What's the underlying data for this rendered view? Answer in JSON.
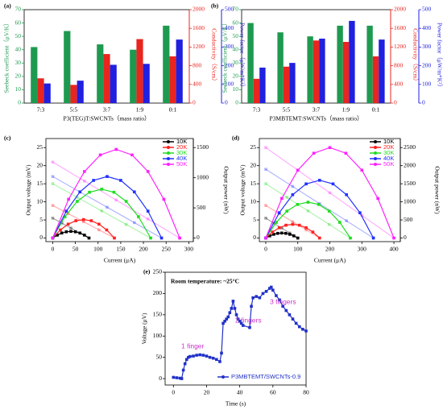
{
  "chart_data": [
    {
      "type": "bar",
      "panel_label": "(a)",
      "xlabel": "P3(TEG)T:SWCNTs（mass ratio）",
      "ylabel": "Seebeck coefficient（μV/K）",
      "y2label": "Conductivity（S/cm）",
      "y3label": "Power factor（μW/m*K²）",
      "categories": [
        "7:3",
        "5:5",
        "3:7",
        "1:9",
        "0:1"
      ],
      "ylim": [
        0,
        70
      ],
      "yticks": [
        0,
        10,
        20,
        30,
        40,
        50,
        60,
        70
      ],
      "y2lim": [
        0,
        2000
      ],
      "y2ticks": [
        0,
        400,
        800,
        1200,
        1600,
        2000
      ],
      "y3lim": [
        0,
        500
      ],
      "y3ticks": [
        0,
        100,
        200,
        300,
        400,
        500
      ],
      "series": [
        {
          "color": "#1e9a50",
          "values": [
            42,
            54,
            44,
            40,
            58
          ]
        },
        {
          "color": "#e8251f",
          "axis": "y2",
          "values": [
            530,
            390,
            1050,
            1370,
            1000
          ]
        },
        {
          "color": "#2020e0",
          "axis": "y3",
          "values": [
            105,
            120,
            205,
            210,
            340
          ]
        }
      ]
    },
    {
      "type": "bar",
      "panel_label": "(b)",
      "xlabel": "P3MBTEMT:SWCNTs（mass ratio）",
      "ylabel": "Seebeck coefficient（μV/K）",
      "y2label": "Conductivity（S/cm）",
      "y3label": "Power factor（μW/m*K²）",
      "categories": [
        "7:3",
        "5:5",
        "3:7",
        "1:9",
        "0:1"
      ],
      "ylim": [
        0,
        70
      ],
      "yticks": [
        0,
        10,
        20,
        30,
        40,
        50,
        60,
        70
      ],
      "y2lim": [
        0,
        2000
      ],
      "y2ticks": [
        0,
        400,
        800,
        1200,
        1600,
        2000
      ],
      "y3lim": [
        0,
        500
      ],
      "y3ticks": [
        0,
        100,
        200,
        300,
        400,
        500
      ],
      "series": [
        {
          "color": "#1e9a50",
          "values": [
            60,
            53,
            50,
            58,
            58
          ]
        },
        {
          "color": "#e8251f",
          "axis": "y2",
          "values": [
            520,
            780,
            1340,
            1310,
            1000
          ]
        },
        {
          "color": "#2020e0",
          "axis": "y3",
          "values": [
            190,
            215,
            345,
            440,
            340
          ]
        }
      ]
    },
    {
      "type": "line",
      "panel_label": "(c)",
      "xlabel": "Current (μA)",
      "ylabel": "Output voltage (mV)",
      "y2label": "Output power (nW)",
      "xlim": [
        -15,
        310
      ],
      "xticks": [
        0,
        50,
        100,
        150,
        200,
        250,
        300
      ],
      "ylim": [
        -1,
        27.5
      ],
      "yticks": [
        0,
        5,
        10,
        15,
        20,
        25
      ],
      "y2lim": [
        -60,
        1650
      ],
      "y2ticks": [
        0,
        500,
        1000,
        1500
      ],
      "legend": "upper right",
      "series": [
        {
          "name": "10K",
          "color": "#000000",
          "opacity": 0.35,
          "x": [
            0,
            20,
            40,
            60,
            80
          ],
          "values": [
            5.5,
            4.13,
            2.75,
            1.38,
            0
          ]
        },
        {
          "name": "20K",
          "color": "#ff2020",
          "opacity": 0.35,
          "x": [
            0,
            34,
            68,
            102,
            136
          ],
          "values": [
            9,
            6.75,
            4.5,
            2.25,
            0
          ]
        },
        {
          "name": "30K",
          "color": "#20dd20",
          "opacity": 0.35,
          "x": [
            0,
            54,
            108,
            162,
            216
          ],
          "values": [
            15,
            11.25,
            7.5,
            3.75,
            0
          ]
        },
        {
          "name": "40K",
          "color": "#2030ff",
          "opacity": 0.35,
          "x": [
            0,
            60,
            120,
            180,
            240
          ],
          "values": [
            17,
            12.75,
            8.5,
            4.25,
            0
          ]
        },
        {
          "name": "50K",
          "color": "#ff20ff",
          "opacity": 0.35,
          "x": [
            0,
            70,
            140,
            210,
            280
          ],
          "values": [
            21,
            15.75,
            10.5,
            5.25,
            0
          ]
        },
        {
          "color": "#000000",
          "axis": "y2",
          "x": [
            0,
            10,
            20,
            30,
            40,
            50,
            60,
            70,
            80
          ],
          "values": [
            0,
            48,
            83,
            103,
            110,
            103,
            83,
            48,
            0
          ]
        },
        {
          "color": "#ff2020",
          "axis": "y2",
          "x": [
            0,
            17,
            34,
            51,
            68,
            85,
            102,
            119,
            136
          ],
          "values": [
            0,
            134,
            230,
            287,
            306,
            287,
            230,
            134,
            0
          ]
        },
        {
          "color": "#20dd20",
          "axis": "y2",
          "x": [
            0,
            27,
            54,
            81,
            108,
            135,
            162,
            189,
            216
          ],
          "values": [
            0,
            354,
            608,
            759,
            810,
            759,
            608,
            354,
            0
          ]
        },
        {
          "color": "#2030ff",
          "axis": "y2",
          "x": [
            0,
            30,
            60,
            90,
            120,
            150,
            180,
            210,
            240
          ],
          "values": [
            0,
            446,
            765,
            956,
            1020,
            956,
            765,
            446,
            0
          ]
        },
        {
          "color": "#ff20ff",
          "axis": "y2",
          "x": [
            0,
            35,
            70,
            105,
            140,
            175,
            210,
            245,
            280
          ],
          "values": [
            0,
            643,
            1103,
            1378,
            1470,
            1378,
            1103,
            643,
            0
          ]
        }
      ]
    },
    {
      "type": "line",
      "panel_label": "(d)",
      "xlabel": "Current (μA)",
      "ylabel": "Output voltage (mV)",
      "y2label": "Output power (nW)",
      "xlim": [
        -20,
        420
      ],
      "xticks": [
        0,
        100,
        200,
        300,
        400
      ],
      "ylim": [
        -1,
        27.5
      ],
      "yticks": [
        0,
        5,
        10,
        15,
        20,
        25
      ],
      "y2lim": [
        -100,
        2750
      ],
      "y2ticks": [
        0,
        500,
        1000,
        1500,
        2000,
        2500
      ],
      "legend": "upper right",
      "series": [
        {
          "name": "10K",
          "color": "#000000",
          "opacity": 0.35,
          "x": [
            0,
            25,
            50,
            75,
            100
          ],
          "values": [
            5.5,
            4.13,
            2.75,
            1.38,
            0
          ]
        },
        {
          "name": "20K",
          "color": "#ff2020",
          "opacity": 0.35,
          "x": [
            0,
            42,
            84,
            126,
            168
          ],
          "values": [
            9,
            6.75,
            4.5,
            2.25,
            0
          ]
        },
        {
          "name": "30K",
          "color": "#20dd20",
          "opacity": 0.35,
          "x": [
            0,
            66,
            132,
            198,
            264
          ],
          "values": [
            15,
            11.25,
            7.5,
            3.75,
            0
          ]
        },
        {
          "name": "40K",
          "color": "#2030ff",
          "opacity": 0.35,
          "x": [
            0,
            84,
            168,
            252,
            336
          ],
          "values": [
            19,
            14.25,
            9.5,
            4.75,
            0
          ]
        },
        {
          "name": "50K",
          "color": "#ff20ff",
          "opacity": 0.35,
          "x": [
            0,
            100,
            200,
            300,
            400
          ],
          "values": [
            25,
            18.75,
            12.5,
            6.25,
            0
          ]
        },
        {
          "color": "#000000",
          "axis": "y2",
          "x": [
            0,
            12.5,
            25,
            37.5,
            50,
            62.5,
            75,
            87.5,
            100
          ],
          "values": [
            0,
            60,
            103,
            129,
            138,
            129,
            103,
            60,
            0
          ]
        },
        {
          "color": "#ff2020",
          "axis": "y2",
          "x": [
            0,
            21,
            42,
            63,
            84,
            105,
            126,
            147,
            168
          ],
          "values": [
            0,
            165,
            284,
            354,
            378,
            354,
            284,
            165,
            0
          ]
        },
        {
          "color": "#20dd20",
          "axis": "y2",
          "x": [
            0,
            33,
            66,
            99,
            132,
            165,
            198,
            231,
            264
          ],
          "values": [
            0,
            433,
            743,
            928,
            990,
            928,
            743,
            433,
            0
          ]
        },
        {
          "color": "#2030ff",
          "axis": "y2",
          "x": [
            0,
            42,
            84,
            126,
            168,
            210,
            252,
            294,
            336
          ],
          "values": [
            0,
            698,
            1197,
            1496,
            1596,
            1496,
            1197,
            698,
            0
          ]
        },
        {
          "color": "#ff20ff",
          "axis": "y2",
          "x": [
            0,
            50,
            100,
            150,
            200,
            250,
            300,
            350,
            400
          ],
          "values": [
            0,
            1094,
            1875,
            2344,
            2500,
            2344,
            1875,
            1094,
            0
          ]
        }
      ]
    },
    {
      "type": "line",
      "panel_label": "(e)",
      "xlabel": "Time (s)",
      "ylabel": "Voltage (μV)",
      "xlim": [
        -5,
        80
      ],
      "xticks": [
        0,
        20,
        40,
        60,
        80
      ],
      "ylim": [
        -15,
        250
      ],
      "yticks": [
        0,
        50,
        100,
        150,
        200,
        250
      ],
      "legend": "lower right",
      "annotations": [
        {
          "text": "Room temperature: ~25°C",
          "color": "#000000"
        },
        {
          "text": "1 finger",
          "color": "#cc33cc"
        },
        {
          "text": "2 fingers",
          "color": "#cc33cc"
        },
        {
          "text": "3 fingers",
          "color": "#cc33cc"
        }
      ],
      "series": [
        {
          "name": "P3MBTEMT/SWCNTs-0.9",
          "color": "#2030c8",
          "x": [
            0,
            2,
            4,
            5,
            6,
            7,
            8,
            9,
            10,
            12,
            14,
            16,
            18,
            20,
            22,
            24,
            26,
            28,
            29,
            30,
            31,
            32,
            33,
            34,
            35,
            36,
            37,
            38,
            39,
            40,
            41,
            42,
            46,
            47,
            48,
            50,
            52,
            54,
            56,
            58,
            59,
            60,
            62,
            64,
            66,
            68,
            70,
            72,
            74,
            76,
            78,
            80
          ],
          "values": [
            3,
            2,
            1,
            0,
            20,
            35,
            45,
            50,
            52,
            53,
            55,
            56,
            55,
            53,
            50,
            48,
            45,
            40,
            60,
            130,
            135,
            140,
            145,
            155,
            165,
            182,
            165,
            150,
            140,
            135,
            130,
            125,
            120,
            170,
            190,
            193,
            190,
            200,
            205,
            212,
            215,
            208,
            195,
            185,
            170,
            160,
            150,
            140,
            130,
            122,
            116,
            112
          ]
        }
      ]
    }
  ]
}
